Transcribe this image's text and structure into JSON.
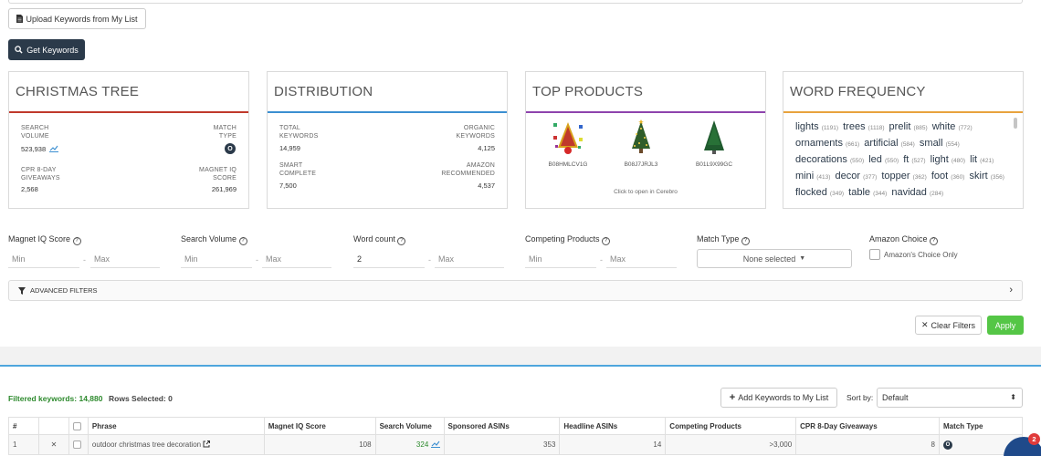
{
  "toolbar": {
    "upload_label": "Upload Keywords from My List",
    "get_keywords_label": "Get Keywords"
  },
  "cards": {
    "keyword": {
      "title": "CHRISTMAS TREE",
      "search_volume_label": "SEARCH VOLUME",
      "search_volume": "523,938",
      "match_type_label": "MATCH TYPE",
      "match_type_badge": "O",
      "cpr_label": "CPR 8-DAY GIVEAWAYS",
      "cpr": "2,568",
      "magnet_label": "MAGNET IQ SCORE",
      "magnet": "261,969",
      "accent": "#c0392b"
    },
    "distribution": {
      "title": "DISTRIBUTION",
      "total_label": "TOTAL KEYWORDS",
      "total": "14,959",
      "organic_label": "ORGANIC KEYWORDS",
      "organic": "4,125",
      "smart_label": "SMART COMPLETE",
      "smart": "7,500",
      "amazon_label": "AMAZON RECOMMENDED",
      "amazon": "4,537",
      "accent": "#3b8fd1"
    },
    "top_products": {
      "title": "TOP PRODUCTS",
      "products": [
        {
          "asin": "B08HMLCV1G"
        },
        {
          "asin": "B08J7JRJL3"
        },
        {
          "asin": "B01L9X99GC"
        }
      ],
      "footer": "Click to open in Cerebro",
      "accent": "#8e44ad"
    },
    "word_frequency": {
      "title": "WORD FREQUENCY",
      "accent": "#e8a33d",
      "words": [
        {
          "w": "lights",
          "c": "(1191)"
        },
        {
          "w": "trees",
          "c": "(1118)"
        },
        {
          "w": "prelit",
          "c": "(885)"
        },
        {
          "w": "white",
          "c": "(772)"
        },
        {
          "w": "ornaments",
          "c": "(661)"
        },
        {
          "w": "artificial",
          "c": "(584)"
        },
        {
          "w": "small",
          "c": "(554)"
        },
        {
          "w": "decorations",
          "c": "(550)"
        },
        {
          "w": "led",
          "c": "(550)"
        },
        {
          "w": "ft",
          "c": "(527)"
        },
        {
          "w": "light",
          "c": "(480)"
        },
        {
          "w": "lit",
          "c": "(421)"
        },
        {
          "w": "mini",
          "c": "(413)"
        },
        {
          "w": "decor",
          "c": "(377)"
        },
        {
          "w": "topper",
          "c": "(362)"
        },
        {
          "w": "foot",
          "c": "(360)"
        },
        {
          "w": "skirt",
          "c": "(356)"
        },
        {
          "w": "flocked",
          "c": "(349)"
        },
        {
          "w": "table",
          "c": "(344)"
        },
        {
          "w": "navidad",
          "c": "(284)"
        }
      ]
    }
  },
  "filters": {
    "magnet_iq": {
      "label": "Magnet IQ Score",
      "min": "Min",
      "max": "Max"
    },
    "search_volume": {
      "label": "Search Volume",
      "min": "Min",
      "max": "Max"
    },
    "word_count": {
      "label": "Word count",
      "min_value": "2",
      "max": "Max"
    },
    "competing": {
      "label": "Competing Products",
      "min": "Min",
      "max": "Max"
    },
    "match_type": {
      "label": "Match Type",
      "selected": "None selected"
    },
    "amazon_choice": {
      "label": "Amazon Choice",
      "checkbox_label": "Amazon's Choice Only"
    },
    "advanced_label": "ADVANCED FILTERS",
    "clear_label": "Clear Filters",
    "apply_label": "Apply"
  },
  "results": {
    "filtered_label": "Filtered keywords: 14,880",
    "rows_selected_label": "Rows Selected: 0",
    "add_label": "Add Keywords to My List",
    "sort_label": "Sort by:",
    "sort_value": "Default",
    "columns": {
      "num": "#",
      "phrase": "Phrase",
      "magnet": "Magnet IQ Score",
      "search_volume": "Search Volume",
      "sponsored": "Sponsored ASINs",
      "headline": "Headline ASINs",
      "competing": "Competing Products",
      "cpr": "CPR 8-Day Giveaways",
      "match": "Match Type"
    },
    "rows": [
      {
        "num": "1",
        "phrase": "outdoor christmas tree decoration",
        "magnet": "108",
        "search_volume": "324",
        "sponsored": "353",
        "headline": "14",
        "competing": ">3,000",
        "cpr": "8",
        "match": "O"
      }
    ]
  },
  "chat": {
    "badge": "2"
  }
}
